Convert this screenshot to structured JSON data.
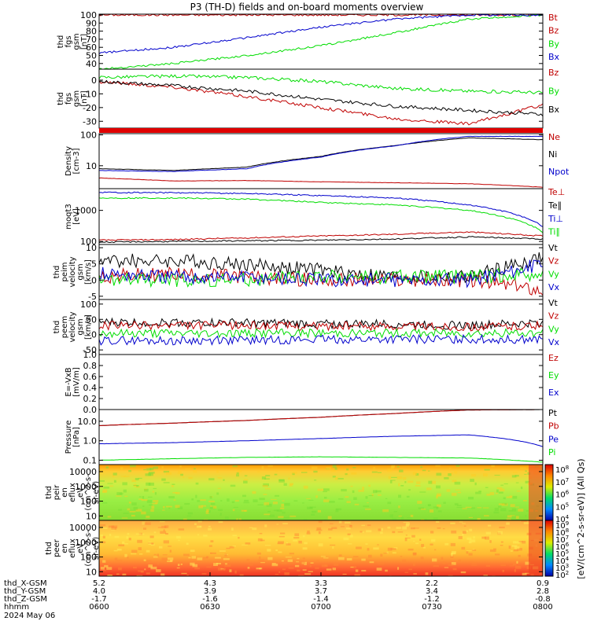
{
  "title": "P3 (TH-D) fields and on-board moments overview",
  "colors": {
    "black": "#000000",
    "red": "#c00000",
    "green": "#00dd00",
    "blue": "#0000cc"
  },
  "chart_data": [
    {
      "type": "line",
      "ylabel": [
        "thd",
        "fgs",
        "gsm",
        "[nT]"
      ],
      "ytick_labels": [
        "100",
        "90",
        "80",
        "70",
        "60",
        "50",
        "40"
      ],
      "ylim": [
        33,
        101
      ],
      "series": [
        {
          "name": "Bt",
          "color": "red",
          "values": [
            100,
            100,
            100,
            100,
            100,
            100,
            100
          ]
        },
        {
          "name": "Bz",
          "color": "red",
          "values": []
        },
        {
          "name": "By",
          "color": "green",
          "values": [
            33,
            40,
            50,
            62,
            78,
            95,
            100
          ]
        },
        {
          "name": "Bx",
          "color": "blue",
          "values": [
            53,
            60,
            72,
            85,
            95,
            100,
            100
          ]
        }
      ]
    },
    {
      "type": "line",
      "ylabel": [
        "thd",
        "fgs",
        "gsm",
        "[nT]"
      ],
      "ytick_labels": [
        "0",
        "-10",
        "-20",
        "-30"
      ],
      "ylim": [
        -35,
        8
      ],
      "series": [
        {
          "name": "Bz",
          "color": "red",
          "values": [
            -1,
            -5,
            -12,
            -20,
            -28,
            -32,
            -18
          ]
        },
        {
          "name": "By",
          "color": "green",
          "values": [
            2,
            3,
            2,
            -1,
            -6,
            -8,
            -9
          ]
        },
        {
          "name": "Bx",
          "color": "black",
          "values": [
            -1,
            -4,
            -8,
            -14,
            -19,
            -22,
            -25
          ]
        }
      ]
    },
    {
      "type": "line",
      "log": true,
      "ylabel": [
        "Density",
        "[cm-3]"
      ],
      "ytick_labels": [
        "100",
        "10"
      ],
      "ylim": [
        1.8,
        110
      ],
      "series": [
        {
          "name": "Ne",
          "color": "red",
          "values": [
            4,
            3.2,
            3.3,
            3,
            2.8,
            2.6,
            2
          ]
        },
        {
          "name": "Ni",
          "color": "black",
          "values": [
            8,
            7,
            9,
            20,
            45,
            80,
            70
          ]
        },
        {
          "name": "Npot",
          "color": "blue",
          "values": [
            7,
            6.5,
            8,
            19,
            44,
            90,
            90
          ]
        }
      ]
    },
    {
      "type": "line",
      "log": true,
      "ylabel": [
        "moqt3",
        "[eV]"
      ],
      "ytick_labels": [
        "1000",
        "100"
      ],
      "ylim": [
        80,
        5000
      ],
      "series": [
        {
          "name": "Te⊥",
          "color": "red",
          "values": [
            110,
            115,
            130,
            150,
            170,
            200,
            150
          ]
        },
        {
          "name": "Te∥",
          "color": "black",
          "values": [
            95,
            100,
            105,
            110,
            120,
            140,
            120
          ]
        },
        {
          "name": "Ti⊥",
          "color": "blue",
          "values": [
            3800,
            3700,
            3500,
            3000,
            2500,
            1500,
            300
          ]
        },
        {
          "name": "Ti∥",
          "color": "green",
          "values": [
            2500,
            2500,
            2300,
            1800,
            1500,
            1000,
            200
          ]
        }
      ]
    },
    {
      "type": "line",
      "ylabel": [
        "thd",
        "peim",
        "velocity",
        "gsm",
        "[km/s]"
      ],
      "ytick_labels": [
        "10",
        "5",
        "0",
        "-5"
      ],
      "ylim": [
        -6,
        11
      ],
      "series": [
        {
          "name": "Vt",
          "color": "black",
          "values": [
            6,
            6,
            5,
            3,
            1,
            1,
            7
          ]
        },
        {
          "name": "Vz",
          "color": "red",
          "values": [
            1,
            2,
            1,
            0,
            0,
            0,
            -3
          ]
        },
        {
          "name": "Vy",
          "color": "green",
          "values": [
            0,
            0,
            0,
            1,
            1,
            1,
            2
          ]
        },
        {
          "name": "Vx",
          "color": "blue",
          "values": [
            2,
            1,
            1,
            0,
            0,
            0,
            5
          ]
        }
      ]
    },
    {
      "type": "line",
      "ylabel": [
        "thd",
        "peem",
        "velocity",
        "gsm",
        "[km/s]"
      ],
      "ytick_labels": [
        "100",
        "50",
        "0",
        "-50"
      ],
      "ylim": [
        -65,
        115
      ],
      "series": [
        {
          "name": "Vt",
          "color": "black",
          "values": [
            40,
            40,
            38,
            35,
            35,
            30,
            38
          ]
        },
        {
          "name": "Vz",
          "color": "red",
          "values": [
            30,
            30,
            30,
            28,
            28,
            25,
            30
          ]
        },
        {
          "name": "Vy",
          "color": "green",
          "values": [
            5,
            5,
            5,
            5,
            5,
            5,
            5
          ]
        },
        {
          "name": "Vx",
          "color": "blue",
          "values": [
            -20,
            -20,
            -18,
            -15,
            -15,
            -15,
            -15
          ]
        }
      ]
    },
    {
      "type": "line",
      "ylabel": [
        "E=-VxB",
        "[mV/m]"
      ],
      "ytick_labels": [
        "1.0",
        "0.8",
        "0.6",
        "0.4",
        "0.2",
        "0.0"
      ],
      "ylim": [
        0,
        1
      ],
      "series": [
        {
          "name": "Ez",
          "color": "red",
          "values": []
        },
        {
          "name": "Ey",
          "color": "green",
          "values": []
        },
        {
          "name": "Ex",
          "color": "blue",
          "values": []
        }
      ]
    },
    {
      "type": "line",
      "log": true,
      "ylabel": [
        "Pressure",
        "[nPa]"
      ],
      "ytick_labels": [
        "10.0",
        "1.0",
        "0.1"
      ],
      "ylim": [
        0.06,
        40
      ],
      "series": [
        {
          "name": "Pt",
          "color": "black",
          "values": [
            6,
            8,
            11,
            16,
            25,
            38,
            40
          ]
        },
        {
          "name": "Pb",
          "color": "red",
          "values": [
            6,
            8,
            11,
            16,
            25,
            38,
            40
          ]
        },
        {
          "name": "Pe",
          "color": "blue",
          "values": [
            0.7,
            0.8,
            1,
            1.3,
            1.7,
            2,
            0.5
          ]
        },
        {
          "name": "Pi",
          "color": "green",
          "values": [
            0.1,
            0.12,
            0.14,
            0.15,
            0.14,
            0.13,
            0.08
          ]
        }
      ]
    },
    {
      "type": "heatmap",
      "log": true,
      "ylabel": [
        "thd",
        "peir",
        "en",
        "eflux",
        "eV",
        "(cm^2-s-",
        "sr-eV)"
      ],
      "ytick_labels": [
        "10000",
        "1000",
        "100",
        "10"
      ],
      "ylim": [
        5,
        30000
      ]
    },
    {
      "type": "heatmap",
      "log": true,
      "ylabel": [
        "thd",
        "peer",
        "en",
        "eflux",
        "eV",
        "(cm^2-s-",
        "sr-eV)"
      ],
      "ytick_labels": [
        "10000",
        "1000",
        "100",
        "10"
      ],
      "ylim": [
        5,
        30000
      ]
    }
  ],
  "colorbar": {
    "tick_labels": [
      "10^8",
      "10^7",
      "10^6",
      "10^5",
      "10^4"
    ],
    "tick_labels_lower": [
      "10^9",
      "10^8",
      "10^7",
      "10^6",
      "10^5",
      "10^4",
      "10^3",
      "10^2"
    ],
    "label": "[eV/(cm^2-s-sr-eV)] (All Qs)"
  },
  "x_axis": {
    "row_labels": [
      "thd_X-GSM",
      "thd_Y-GSM",
      "thd_Z-GSM",
      "hhmm",
      "2024 May 06"
    ],
    "ticks": [
      {
        "x": "5.2",
        "y": "4.0",
        "z": "-1.7",
        "t": "0600"
      },
      {
        "x": "4.3",
        "y": "3.9",
        "z": "-1.6",
        "t": "0630"
      },
      {
        "x": "3.3",
        "y": "3.7",
        "z": "-1.4",
        "t": "0700"
      },
      {
        "x": "2.2",
        "y": "3.4",
        "z": "-1.2",
        "t": "0730"
      },
      {
        "x": "0.9",
        "y": "2.8",
        "z": "-0.8",
        "t": "0800"
      }
    ]
  }
}
